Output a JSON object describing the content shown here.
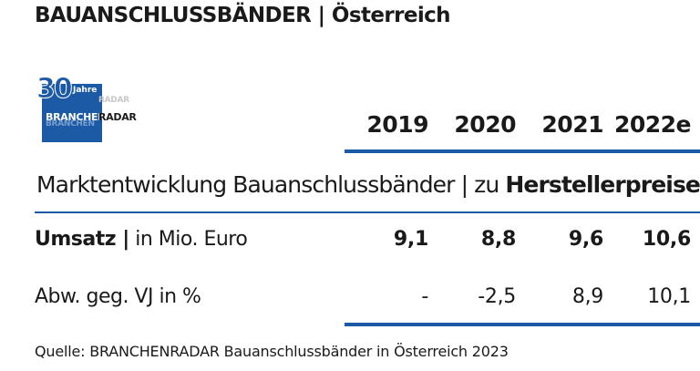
{
  "title": {
    "main": "BAUANSCHLUSSBÄNDER",
    "separator": "|",
    "region": "Österreich"
  },
  "logo": {
    "number": "30",
    "jahre": "Jahre",
    "brand_a": "BRANCHEN",
    "brand_b": "RADAR",
    "reflection_a": "BRANCHEN",
    "reflection_b": "RADAR"
  },
  "years": [
    "2019",
    "2020",
    "2021",
    "2022e"
  ],
  "section": {
    "prefix": "Marktentwicklung Bauanschlussbänder | zu ",
    "emphasis": "Herstellerpreisen"
  },
  "rows": [
    {
      "label_bold": "Umsatz |",
      "label_rest": " in Mio. Euro",
      "values": [
        "9,1",
        "8,8",
        "9,6",
        "10,6"
      ]
    },
    {
      "label_bold": "",
      "label_rest": "Abw. geg. VJ in %",
      "values": [
        "-",
        "-2,5",
        "8,9",
        "10,1"
      ]
    }
  ],
  "source": "Quelle: BRANCHENRADAR Bauanschlussbänder in Österreich 2023",
  "colors": {
    "accent": "#1c5aa6",
    "text": "#1a1a1a"
  }
}
